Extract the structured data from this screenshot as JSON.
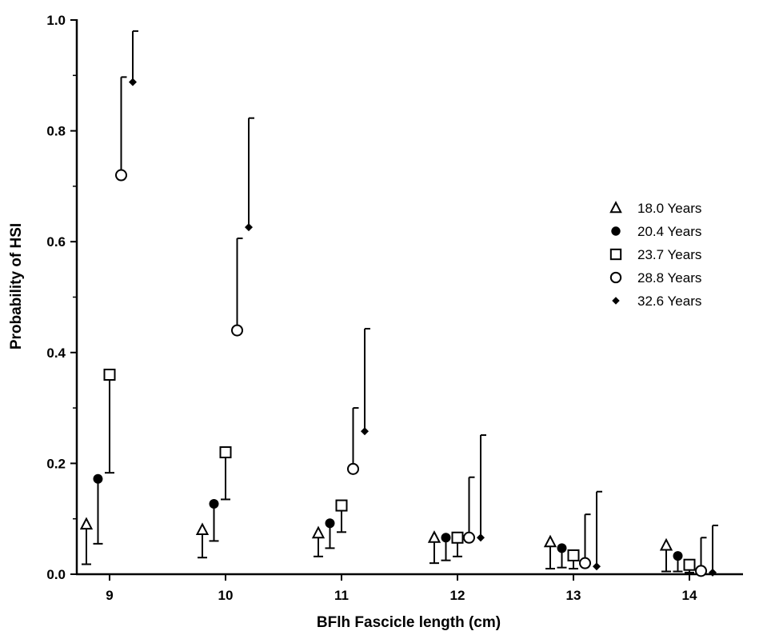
{
  "chart_data": {
    "type": "scatter",
    "xlabel": "BFlh Fascicle length (cm)",
    "ylabel": "Probability of HSI",
    "xticks": [
      "9",
      "10",
      "11",
      "12",
      "13",
      "14"
    ],
    "yticks": [
      "0.0",
      "0.2",
      "0.4",
      "0.6",
      "0.8",
      "1.0"
    ],
    "ylim": [
      0,
      1.0
    ],
    "xlim": [
      8.6,
      14.4
    ],
    "grid": false,
    "legend_position": "right",
    "series": [
      {
        "name": "18.0 Years",
        "marker": "triangle-open",
        "x": [
          9,
          10,
          11,
          12,
          13,
          14
        ],
        "y": [
          0.09,
          0.08,
          0.074,
          0.066,
          0.058,
          0.052
        ],
        "error_low": [
          0.018,
          0.03,
          0.032,
          0.02,
          0.01,
          0.005
        ],
        "error_high": [
          null,
          null,
          null,
          null,
          null,
          null
        ]
      },
      {
        "name": "20.4 Years",
        "marker": "circle-filled",
        "x": [
          9,
          10,
          11,
          12,
          13,
          14
        ],
        "y": [
          0.172,
          0.127,
          0.092,
          0.066,
          0.047,
          0.033
        ],
        "error_low": [
          0.055,
          0.06,
          0.047,
          0.025,
          0.012,
          0.005
        ],
        "error_high": [
          null,
          null,
          null,
          null,
          null,
          null
        ]
      },
      {
        "name": "23.7 Years",
        "marker": "square-open",
        "x": [
          9,
          10,
          11,
          12,
          13,
          14
        ],
        "y": [
          0.36,
          0.22,
          0.124,
          0.066,
          0.034,
          0.017
        ],
        "error_low": [
          0.183,
          0.135,
          0.076,
          0.032,
          0.01,
          0.003
        ],
        "error_high": [
          null,
          null,
          null,
          null,
          null,
          null
        ]
      },
      {
        "name": "28.8 Years",
        "marker": "circle-open",
        "x": [
          9,
          10,
          11,
          12,
          13,
          14
        ],
        "y": [
          0.72,
          0.44,
          0.19,
          0.066,
          0.02,
          0.006
        ],
        "error_low": [
          null,
          null,
          null,
          null,
          null,
          null
        ],
        "error_high": [
          0.897,
          0.606,
          0.3,
          0.175,
          0.108,
          0.066
        ]
      },
      {
        "name": "32.6 Years",
        "marker": "diamond-filled",
        "x": [
          9,
          10,
          11,
          12,
          13,
          14
        ],
        "y": [
          0.888,
          0.626,
          0.258,
          0.066,
          0.014,
          0.003
        ],
        "error_low": [
          null,
          null,
          null,
          null,
          null,
          null
        ],
        "error_high": [
          0.98,
          0.823,
          0.443,
          0.251,
          0.149,
          0.088
        ]
      }
    ]
  }
}
